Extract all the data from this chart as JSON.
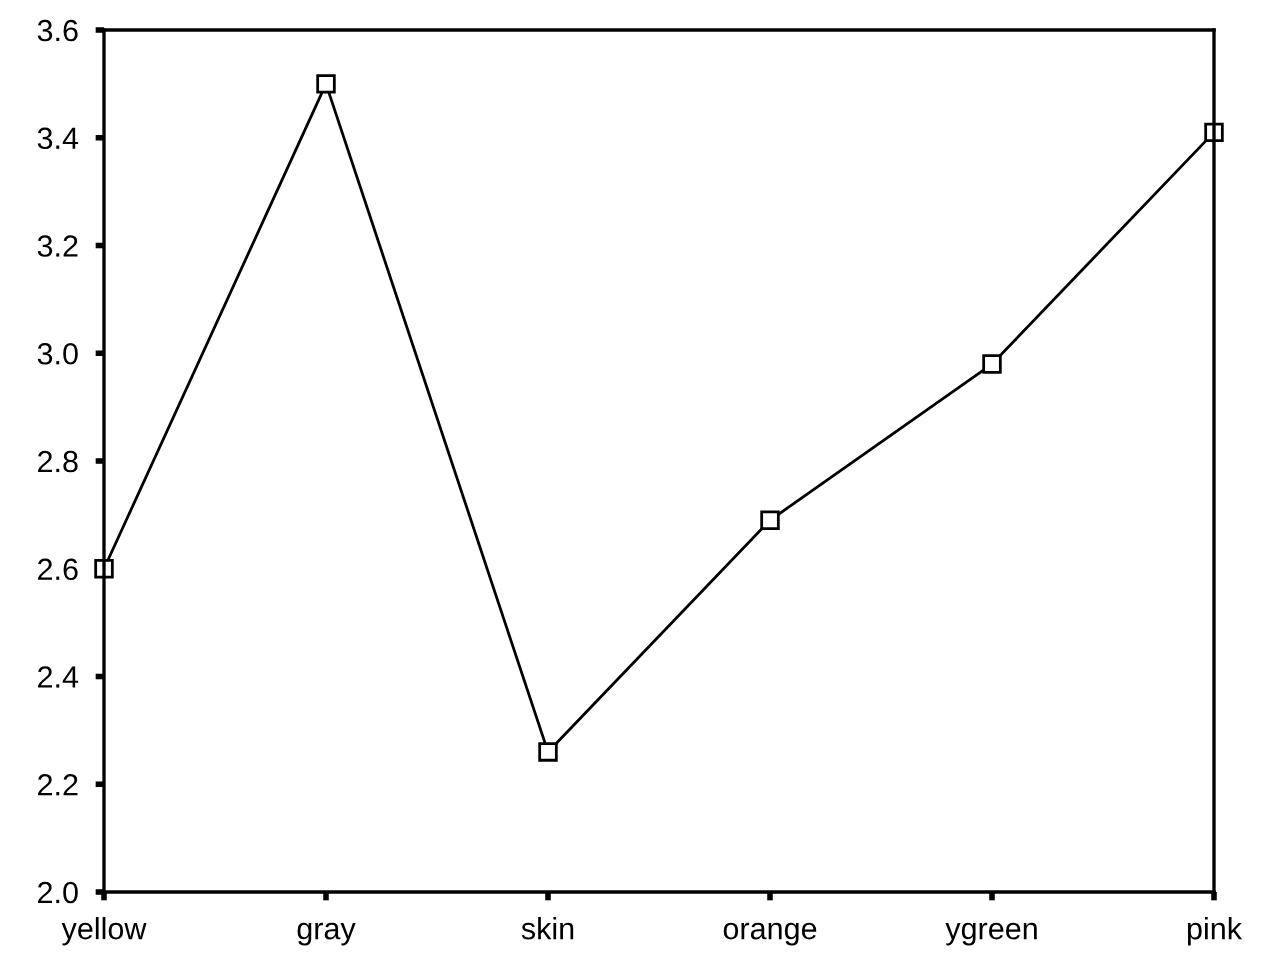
{
  "chart_data": {
    "type": "line",
    "categories": [
      "yellow",
      "gray",
      "skin",
      "orange",
      "ygreen",
      "pink"
    ],
    "series": [
      {
        "color": "#000000",
        "values": [
          2.6,
          3.5,
          2.26,
          2.69,
          2.98,
          3.41
        ]
      }
    ],
    "ylim": [
      2.0,
      3.6
    ],
    "yticks": [
      {
        "value": 2,
        "label": "2.0"
      },
      2.2,
      2.4,
      2.6,
      2.8,
      {
        "value": 3,
        "label": "3.0"
      },
      3.2,
      3.4,
      3.6
    ],
    "marker": "square",
    "line_style": "solid",
    "grid": false,
    "legend": false
  }
}
